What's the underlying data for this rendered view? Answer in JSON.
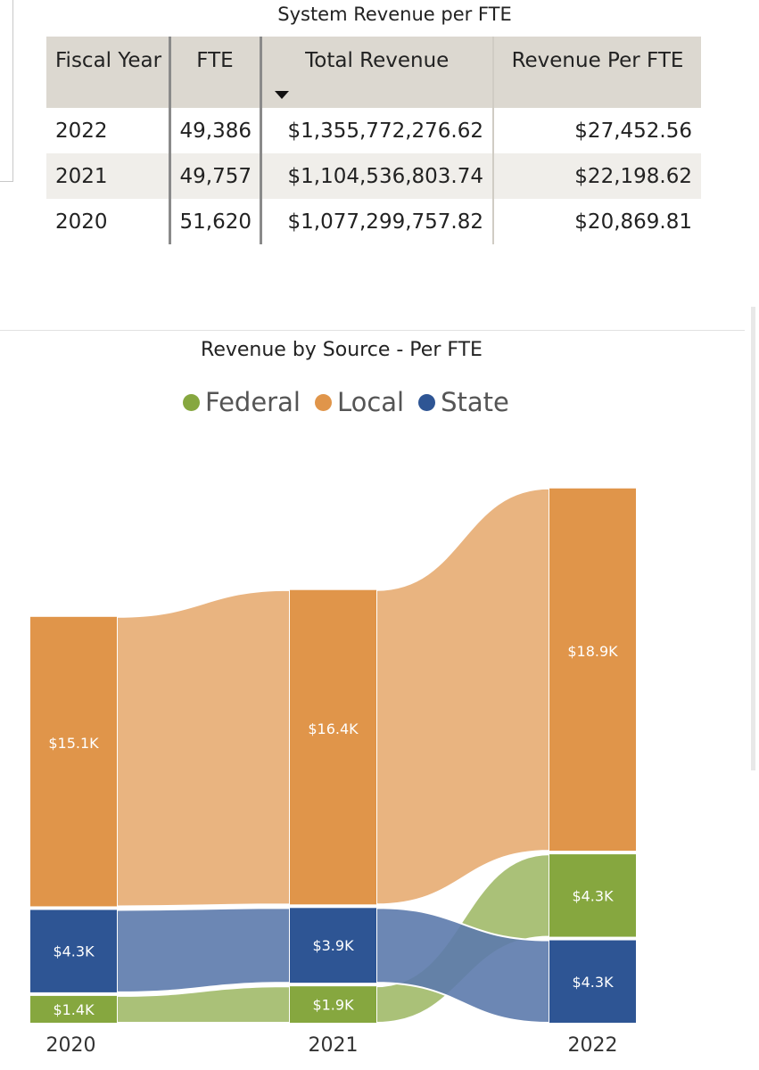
{
  "table": {
    "title": "System Revenue per FTE",
    "headers": [
      "Fiscal Year",
      "FTE",
      "Total Revenue",
      "Revenue Per FTE"
    ],
    "rows": [
      [
        "2022",
        "49,386",
        "$1,355,772,276.62",
        "$27,452.56"
      ],
      [
        "2021",
        "49,757",
        "$1,104,536,803.74",
        "$22,198.62"
      ],
      [
        "2020",
        "51,620",
        "$1,077,299,757.82",
        "$20,869.81"
      ]
    ]
  },
  "chart_data": {
    "type": "area",
    "subtype": "ribbon",
    "title": "Revenue by Source - Per FTE",
    "legend": [
      "Federal",
      "Local",
      "State"
    ],
    "legend_position": "top-center",
    "categories": [
      "2020",
      "2021",
      "2022"
    ],
    "series": [
      {
        "name": "Federal",
        "color": "#86a73f",
        "values": [
          1400,
          1900,
          4300
        ],
        "labels": [
          "$1.4K",
          "$1.9K",
          "$4.3K"
        ]
      },
      {
        "name": "Local",
        "color": "#e0954a",
        "values": [
          15100,
          16400,
          18900
        ],
        "labels": [
          "$15.1K",
          "$16.4K",
          "$18.9K"
        ]
      },
      {
        "name": "State",
        "color": "#2e5594",
        "values": [
          4300,
          3900,
          4300
        ],
        "labels": [
          "$4.3K",
          "$3.9K",
          "$4.3K"
        ]
      }
    ]
  }
}
